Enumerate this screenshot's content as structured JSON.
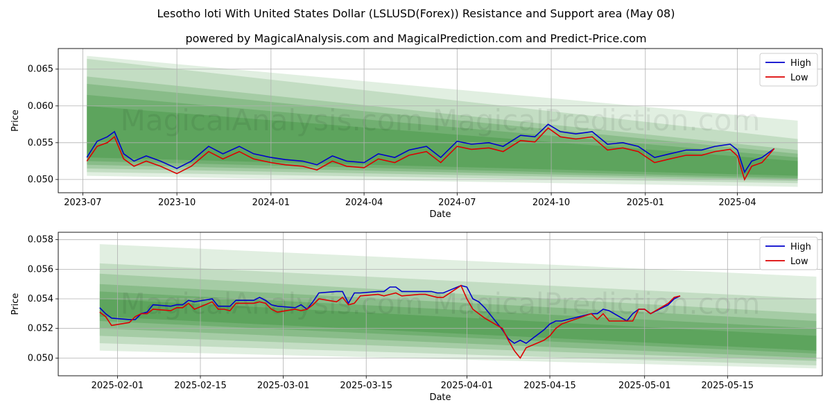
{
  "title": "Lesotho loti With United States Dollar (LSLUSD(Forex)) Resistance and Support area (May 08)",
  "subtitle": "powered by MagicalAnalysis.com and MagicalPrediction.com and Predict-Price.com",
  "watermark": "MagicalAnalysis.com    MagicalPrediction.com",
  "colors": {
    "high": "#0000cc",
    "low": "#dd0000",
    "band": "#2e8b2e",
    "grid": "#b0b0b0"
  },
  "chart_data": [
    {
      "type": "line",
      "xlabel": "Date",
      "ylabel": "Price",
      "legend_position": "top-right",
      "grid": true,
      "xlim": [
        "2023-06-07",
        "2025-06-23"
      ],
      "ylim": [
        0.0482,
        0.0678
      ],
      "x_ticks": [
        "2023-07",
        "2023-10",
        "2024-01",
        "2024-04",
        "2024-07",
        "2024-10",
        "2025-01",
        "2025-04"
      ],
      "x_tick_dates": [
        "2023-07-01",
        "2023-10-01",
        "2024-01-01",
        "2024-04-01",
        "2024-07-01",
        "2024-10-01",
        "2025-01-01",
        "2025-04-01"
      ],
      "y_ticks": [
        "0.050",
        "0.055",
        "0.060",
        "0.065"
      ],
      "series": [
        {
          "name": "High",
          "x": [
            "2023-07-05",
            "2023-07-15",
            "2023-07-25",
            "2023-08-01",
            "2023-08-10",
            "2023-08-20",
            "2023-09-01",
            "2023-09-15",
            "2023-10-01",
            "2023-10-15",
            "2023-11-01",
            "2023-11-15",
            "2023-12-01",
            "2023-12-15",
            "2024-01-01",
            "2024-01-15",
            "2024-02-01",
            "2024-02-15",
            "2024-03-01",
            "2024-03-15",
            "2024-04-01",
            "2024-04-15",
            "2024-05-01",
            "2024-05-15",
            "2024-06-01",
            "2024-06-15",
            "2024-07-01",
            "2024-07-15",
            "2024-08-01",
            "2024-08-15",
            "2024-09-01",
            "2024-09-15",
            "2024-09-28",
            "2024-10-10",
            "2024-10-25",
            "2024-11-10",
            "2024-11-25",
            "2024-12-10",
            "2024-12-25",
            "2025-01-10",
            "2025-01-25",
            "2025-02-10",
            "2025-02-25",
            "2025-03-10",
            "2025-03-25",
            "2025-04-01",
            "2025-04-08",
            "2025-04-15",
            "2025-04-25",
            "2025-05-07"
          ],
          "y": [
            0.053,
            0.0552,
            0.0558,
            0.0565,
            0.0535,
            0.0525,
            0.0532,
            0.0525,
            0.0515,
            0.0525,
            0.0545,
            0.0535,
            0.0545,
            0.0535,
            0.053,
            0.0527,
            0.0525,
            0.052,
            0.0532,
            0.0525,
            0.0523,
            0.0535,
            0.053,
            0.054,
            0.0545,
            0.053,
            0.0552,
            0.0548,
            0.055,
            0.0545,
            0.056,
            0.0558,
            0.0575,
            0.0565,
            0.0562,
            0.0565,
            0.0548,
            0.055,
            0.0545,
            0.053,
            0.0535,
            0.054,
            0.054,
            0.0545,
            0.0548,
            0.054,
            0.051,
            0.0525,
            0.053,
            0.0542
          ]
        },
        {
          "name": "Low",
          "x": [
            "2023-07-05",
            "2023-07-15",
            "2023-07-25",
            "2023-08-01",
            "2023-08-10",
            "2023-08-20",
            "2023-09-01",
            "2023-09-15",
            "2023-10-01",
            "2023-10-15",
            "2023-11-01",
            "2023-11-15",
            "2023-12-01",
            "2023-12-15",
            "2024-01-01",
            "2024-01-15",
            "2024-02-01",
            "2024-02-15",
            "2024-03-01",
            "2024-03-15",
            "2024-04-01",
            "2024-04-15",
            "2024-05-01",
            "2024-05-15",
            "2024-06-01",
            "2024-06-15",
            "2024-07-01",
            "2024-07-15",
            "2024-08-01",
            "2024-08-15",
            "2024-09-01",
            "2024-09-15",
            "2024-09-28",
            "2024-10-10",
            "2024-10-25",
            "2024-11-10",
            "2024-11-25",
            "2024-12-10",
            "2024-12-25",
            "2025-01-10",
            "2025-01-25",
            "2025-02-10",
            "2025-02-25",
            "2025-03-10",
            "2025-03-25",
            "2025-04-01",
            "2025-04-08",
            "2025-04-15",
            "2025-04-25",
            "2025-05-07"
          ],
          "y": [
            0.0525,
            0.0545,
            0.055,
            0.0558,
            0.0528,
            0.0518,
            0.0525,
            0.0518,
            0.0508,
            0.0518,
            0.0538,
            0.0528,
            0.0538,
            0.0528,
            0.0523,
            0.052,
            0.0518,
            0.0513,
            0.0525,
            0.0518,
            0.0516,
            0.0528,
            0.0523,
            0.0533,
            0.0538,
            0.0523,
            0.0545,
            0.0541,
            0.0543,
            0.0538,
            0.0553,
            0.0551,
            0.057,
            0.0558,
            0.0555,
            0.0558,
            0.054,
            0.0543,
            0.0538,
            0.0523,
            0.0528,
            0.0533,
            0.0533,
            0.0538,
            0.0541,
            0.0532,
            0.05,
            0.0518,
            0.0523,
            0.0542
          ]
        }
      ],
      "bands": [
        {
          "start": "2023-07-05",
          "end": "2025-05-30",
          "upper": [
            0.0668,
            0.058
          ],
          "lower": [
            0.0505,
            0.049
          ]
        },
        {
          "start": "2023-07-05",
          "end": "2025-05-30",
          "upper": [
            0.0664,
            0.0555
          ],
          "lower": [
            0.051,
            0.0495
          ]
        },
        {
          "start": "2023-07-05",
          "end": "2025-05-30",
          "upper": [
            0.064,
            0.054
          ],
          "lower": [
            0.0515,
            0.0498
          ]
        },
        {
          "start": "2023-07-05",
          "end": "2025-05-30",
          "upper": [
            0.063,
            0.0535
          ],
          "lower": [
            0.052,
            0.05
          ]
        },
        {
          "start": "2023-07-05",
          "end": "2025-05-30",
          "upper": [
            0.0615,
            0.053
          ],
          "lower": [
            0.0525,
            0.0502
          ]
        },
        {
          "start": "2023-07-05",
          "end": "2025-05-30",
          "upper": [
            0.06,
            0.0525
          ],
          "lower": [
            0.053,
            0.0505
          ]
        }
      ]
    },
    {
      "type": "line",
      "xlabel": "Date",
      "ylabel": "Price",
      "legend_position": "top-right",
      "grid": true,
      "xlim": [
        "2025-01-22",
        "2025-05-31"
      ],
      "ylim": [
        0.0488,
        0.0585
      ],
      "x_ticks": [
        "2025-02-01",
        "2025-02-15",
        "2025-03-01",
        "2025-03-15",
        "2025-04-01",
        "2025-04-15",
        "2025-05-01",
        "2025-05-15"
      ],
      "y_ticks": [
        "0.050",
        "0.052",
        "0.054",
        "0.056",
        "0.058"
      ],
      "series": [
        {
          "name": "High",
          "x": [
            "2025-01-29",
            "2025-01-30",
            "2025-01-31",
            "2025-02-03",
            "2025-02-04",
            "2025-02-05",
            "2025-02-06",
            "2025-02-07",
            "2025-02-10",
            "2025-02-11",
            "2025-02-12",
            "2025-02-13",
            "2025-02-14",
            "2025-02-17",
            "2025-02-18",
            "2025-02-19",
            "2025-02-20",
            "2025-02-21",
            "2025-02-24",
            "2025-02-25",
            "2025-02-26",
            "2025-02-27",
            "2025-02-28",
            "2025-03-03",
            "2025-03-04",
            "2025-03-05",
            "2025-03-06",
            "2025-03-07",
            "2025-03-10",
            "2025-03-11",
            "2025-03-12",
            "2025-03-13",
            "2025-03-14",
            "2025-03-17",
            "2025-03-18",
            "2025-03-19",
            "2025-03-20",
            "2025-03-21",
            "2025-03-24",
            "2025-03-25",
            "2025-03-26",
            "2025-03-27",
            "2025-03-28",
            "2025-03-31",
            "2025-04-01",
            "2025-04-02",
            "2025-04-03",
            "2025-04-04",
            "2025-04-07",
            "2025-04-08",
            "2025-04-09",
            "2025-04-10",
            "2025-04-11",
            "2025-04-14",
            "2025-04-15",
            "2025-04-16",
            "2025-04-17",
            "2025-04-22",
            "2025-04-23",
            "2025-04-24",
            "2025-04-25",
            "2025-04-28",
            "2025-04-29",
            "2025-04-30",
            "2025-05-01",
            "2025-05-02",
            "2025-05-05",
            "2025-05-06",
            "2025-05-07"
          ],
          "y": [
            0.0534,
            0.053,
            0.0527,
            0.0526,
            0.0526,
            0.053,
            0.0531,
            0.0536,
            0.0535,
            0.0536,
            0.0536,
            0.0539,
            0.0538,
            0.054,
            0.0535,
            0.0535,
            0.0535,
            0.0539,
            0.0539,
            0.0541,
            0.0539,
            0.0536,
            0.0535,
            0.0534,
            0.0536,
            0.0533,
            0.0538,
            0.0544,
            0.0545,
            0.0545,
            0.0537,
            0.0544,
            0.0544,
            0.0545,
            0.0545,
            0.0548,
            0.0548,
            0.0545,
            0.0545,
            0.0545,
            0.0545,
            0.0544,
            0.0544,
            0.0549,
            0.0548,
            0.054,
            0.0538,
            0.0534,
            0.0519,
            0.0513,
            0.051,
            0.0512,
            0.051,
            0.0519,
            0.0523,
            0.0525,
            0.0525,
            0.053,
            0.053,
            0.0533,
            0.0532,
            0.0525,
            0.053,
            0.0533,
            0.0533,
            0.053,
            0.0536,
            0.054,
            0.0542
          ]
        },
        {
          "name": "Low",
          "x": [
            "2025-01-29",
            "2025-01-30",
            "2025-01-31",
            "2025-02-03",
            "2025-02-04",
            "2025-02-05",
            "2025-02-06",
            "2025-02-07",
            "2025-02-10",
            "2025-02-11",
            "2025-02-12",
            "2025-02-13",
            "2025-02-14",
            "2025-02-17",
            "2025-02-18",
            "2025-02-19",
            "2025-02-20",
            "2025-02-21",
            "2025-02-24",
            "2025-02-25",
            "2025-02-26",
            "2025-02-27",
            "2025-02-28",
            "2025-03-03",
            "2025-03-04",
            "2025-03-05",
            "2025-03-06",
            "2025-03-07",
            "2025-03-10",
            "2025-03-11",
            "2025-03-12",
            "2025-03-13",
            "2025-03-14",
            "2025-03-17",
            "2025-03-18",
            "2025-03-19",
            "2025-03-20",
            "2025-03-21",
            "2025-03-24",
            "2025-03-25",
            "2025-03-26",
            "2025-03-27",
            "2025-03-28",
            "2025-03-31",
            "2025-04-01",
            "2025-04-02",
            "2025-04-03",
            "2025-04-04",
            "2025-04-07",
            "2025-04-08",
            "2025-04-09",
            "2025-04-10",
            "2025-04-11",
            "2025-04-14",
            "2025-04-15",
            "2025-04-16",
            "2025-04-17",
            "2025-04-22",
            "2025-04-23",
            "2025-04-24",
            "2025-04-25",
            "2025-04-28",
            "2025-04-29",
            "2025-04-30",
            "2025-05-01",
            "2025-05-02",
            "2025-05-05",
            "2025-05-06",
            "2025-05-07"
          ],
          "y": [
            0.0531,
            0.0528,
            0.0522,
            0.0524,
            0.0528,
            0.053,
            0.053,
            0.0533,
            0.0532,
            0.0534,
            0.0534,
            0.0537,
            0.0533,
            0.0538,
            0.0533,
            0.0533,
            0.0532,
            0.0537,
            0.0537,
            0.0538,
            0.0537,
            0.0533,
            0.0531,
            0.0533,
            0.0532,
            0.0533,
            0.0536,
            0.054,
            0.0538,
            0.0541,
            0.0536,
            0.0537,
            0.0542,
            0.0543,
            0.0542,
            0.0543,
            0.0544,
            0.0542,
            0.0543,
            0.0543,
            0.0542,
            0.0541,
            0.0541,
            0.0549,
            0.054,
            0.0533,
            0.053,
            0.0527,
            0.052,
            0.0512,
            0.0505,
            0.05,
            0.0507,
            0.0512,
            0.0515,
            0.052,
            0.0523,
            0.053,
            0.0526,
            0.053,
            0.0525,
            0.0525,
            0.0525,
            0.0533,
            0.0533,
            0.053,
            0.0537,
            0.0541,
            0.0542
          ]
        }
      ],
      "bands": [
        {
          "start": "2025-01-29",
          "end": "2025-05-30",
          "upper": [
            0.0577,
            0.0555
          ],
          "lower": [
            0.0505,
            0.0493
          ]
        },
        {
          "start": "2025-01-29",
          "end": "2025-05-30",
          "upper": [
            0.0564,
            0.054
          ],
          "lower": [
            0.051,
            0.0495
          ]
        },
        {
          "start": "2025-01-29",
          "end": "2025-05-30",
          "upper": [
            0.0557,
            0.053
          ],
          "lower": [
            0.0515,
            0.0498
          ]
        },
        {
          "start": "2025-01-29",
          "end": "2025-05-30",
          "upper": [
            0.055,
            0.0525
          ],
          "lower": [
            0.052,
            0.05
          ]
        },
        {
          "start": "2025-01-29",
          "end": "2025-05-30",
          "upper": [
            0.0545,
            0.052
          ],
          "lower": [
            0.0525,
            0.0503
          ]
        },
        {
          "start": "2025-01-29",
          "end": "2025-05-30",
          "upper": [
            0.054,
            0.0515
          ],
          "lower": [
            0.0528,
            0.0505
          ]
        }
      ]
    }
  ]
}
